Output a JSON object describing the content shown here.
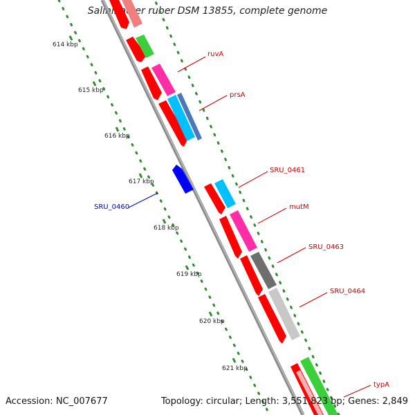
{
  "title": "Salinibacter ruber DSM 13855, complete genome",
  "accession": "Accession: NC_007677",
  "topology": "Topology: circular; Length: 3,551,823 bp; Genes: 2,849",
  "ticks": [
    "614 kbp",
    "615 kbp",
    "616 kbp",
    "617 kbp",
    "618 kbp",
    "619 kbp",
    "620 kbp",
    "621 kbp"
  ],
  "gene_labels": [
    {
      "text": "ruvA",
      "color": "#cc0000"
    },
    {
      "text": "prsA",
      "color": "#cc0000"
    },
    {
      "text": "SRU_0461",
      "color": "#cc0000"
    },
    {
      "text": "mutM",
      "color": "#cc0000"
    },
    {
      "text": "SRU_0463",
      "color": "#cc0000"
    },
    {
      "text": "SRU_0464",
      "color": "#cc0000"
    },
    {
      "text": "typA",
      "color": "#cc0000"
    },
    {
      "text": "SRU_0460",
      "color": "#0000cc"
    }
  ],
  "colors": {
    "backbone": "#8a8a8a",
    "tick_dots": "#2e8b2e",
    "forward_gene": "#ff0000",
    "reverse_gene": "#0000ff"
  }
}
